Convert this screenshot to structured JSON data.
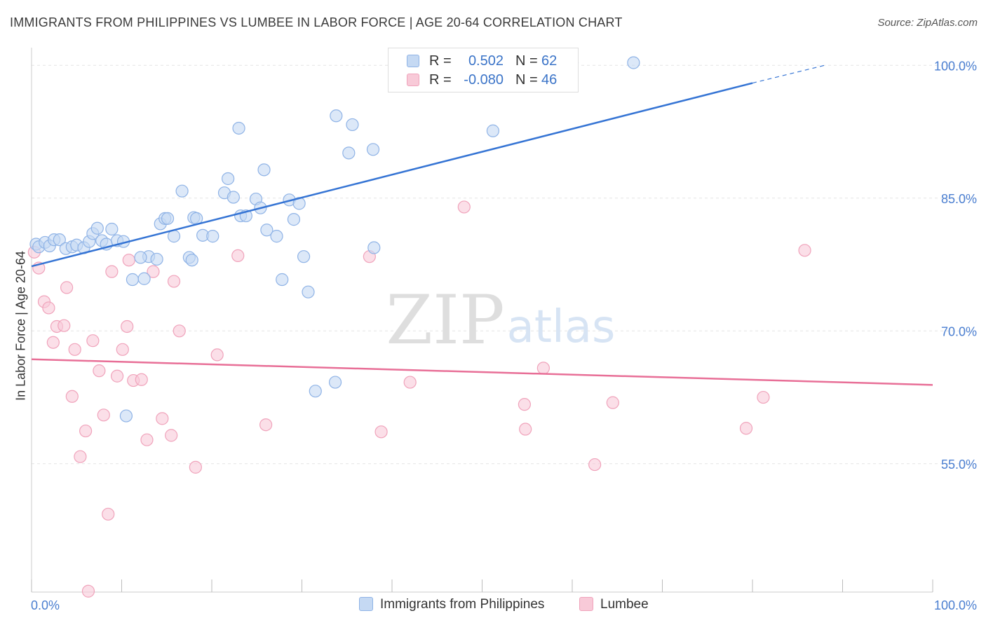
{
  "header": {
    "title": "IMMIGRANTS FROM PHILIPPINES VS LUMBEE IN LABOR FORCE | AGE 20-64 CORRELATION CHART",
    "source": "Source: ZipAtlas.com"
  },
  "watermark": {
    "zip": "ZIP",
    "atlas": "atlas"
  },
  "colors": {
    "blue_fill": "#c5d9f3",
    "blue_stroke": "#8fb3e6",
    "blue_line": "#3574d4",
    "pink_fill": "#f8cad8",
    "pink_stroke": "#f0a3bb",
    "pink_line": "#e86f97",
    "tick_label": "#4a7ed0",
    "grid": "#e3e3e3"
  },
  "stats": [
    {
      "r_label": "R =",
      "r_value": "0.502",
      "n_label": "N =",
      "n_value": "62",
      "swatch": "blue"
    },
    {
      "r_label": "R =",
      "r_value": "-0.080",
      "n_label": "N =",
      "n_value": "46",
      "swatch": "pink"
    }
  ],
  "legend": {
    "series1": "Immigrants from Philippines",
    "series2": "Lumbee"
  },
  "chart_data": {
    "type": "scatter",
    "title": "IMMIGRANTS FROM PHILIPPINES VS LUMBEE IN LABOR FORCE | AGE 20-64 CORRELATION CHART",
    "xlabel": "",
    "ylabel": "In Labor Force | Age 20-64",
    "xlim": [
      0,
      100
    ],
    "ylim": [
      40.5,
      102
    ],
    "x_tick_labels": [
      "0.0%",
      "100.0%"
    ],
    "y_ticks": [
      55,
      70,
      85,
      100
    ],
    "y_tick_labels": [
      "55.0%",
      "70.0%",
      "85.0%",
      "100.0%"
    ],
    "grid": true,
    "legend_position": "bottom",
    "series": [
      {
        "name": "Immigrants from Philippines",
        "color": "#3574d4",
        "trend": {
          "x": [
            0,
            80
          ],
          "y": [
            77.3,
            98.0
          ],
          "dashed_to": [
            88,
            100.0
          ]
        },
        "points": [
          [
            0.5,
            79.8
          ],
          [
            0.8,
            79.5
          ],
          [
            1.5,
            80.0
          ],
          [
            2.0,
            79.6
          ],
          [
            2.5,
            80.3
          ],
          [
            3.1,
            80.3
          ],
          [
            3.8,
            79.3
          ],
          [
            4.5,
            79.5
          ],
          [
            5.0,
            79.7
          ],
          [
            5.8,
            79.4
          ],
          [
            6.4,
            80.1
          ],
          [
            6.8,
            81.0
          ],
          [
            7.3,
            81.6
          ],
          [
            7.8,
            80.2
          ],
          [
            8.3,
            79.8
          ],
          [
            8.9,
            81.5
          ],
          [
            9.5,
            80.2
          ],
          [
            10.2,
            80.1
          ],
          [
            11.2,
            75.8
          ],
          [
            12.5,
            75.9
          ],
          [
            13.0,
            78.4
          ],
          [
            13.9,
            78.1
          ],
          [
            14.3,
            82.1
          ],
          [
            14.8,
            82.7
          ],
          [
            15.1,
            82.7
          ],
          [
            15.8,
            80.7
          ],
          [
            16.7,
            85.8
          ],
          [
            18.0,
            82.8
          ],
          [
            18.3,
            82.7
          ],
          [
            19.0,
            80.8
          ],
          [
            20.1,
            80.7
          ],
          [
            17.5,
            78.3
          ],
          [
            21.4,
            85.6
          ],
          [
            21.8,
            87.2
          ],
          [
            22.4,
            85.1
          ],
          [
            23.2,
            83.0
          ],
          [
            23.8,
            83.0
          ],
          [
            24.9,
            84.9
          ],
          [
            25.4,
            83.9
          ],
          [
            26.1,
            81.4
          ],
          [
            27.2,
            80.7
          ],
          [
            27.8,
            75.8
          ],
          [
            28.6,
            84.8
          ],
          [
            29.1,
            82.6
          ],
          [
            29.7,
            84.4
          ],
          [
            30.2,
            78.4
          ],
          [
            30.7,
            74.4
          ],
          [
            23.0,
            92.9
          ],
          [
            25.8,
            88.2
          ],
          [
            33.8,
            94.3
          ],
          [
            35.2,
            90.1
          ],
          [
            35.6,
            93.3
          ],
          [
            37.9,
            90.5
          ],
          [
            38.0,
            79.4
          ],
          [
            31.5,
            63.2
          ],
          [
            33.7,
            64.2
          ],
          [
            10.5,
            60.4
          ],
          [
            51.2,
            92.6
          ],
          [
            60.0,
            100.3
          ],
          [
            66.8,
            100.3
          ],
          [
            17.8,
            78.0
          ],
          [
            12.1,
            78.3
          ]
        ]
      },
      {
        "name": "Lumbee",
        "color": "#e86f97",
        "trend": {
          "x": [
            0,
            100
          ],
          "y": [
            66.8,
            63.9
          ]
        },
        "points": [
          [
            0.3,
            78.9
          ],
          [
            0.8,
            77.1
          ],
          [
            1.4,
            73.3
          ],
          [
            1.9,
            72.6
          ],
          [
            2.4,
            68.7
          ],
          [
            2.8,
            70.5
          ],
          [
            3.6,
            70.6
          ],
          [
            3.9,
            74.9
          ],
          [
            4.5,
            62.6
          ],
          [
            4.8,
            67.9
          ],
          [
            5.4,
            55.8
          ],
          [
            6.0,
            58.7
          ],
          [
            6.3,
            40.6
          ],
          [
            6.8,
            68.9
          ],
          [
            7.5,
            65.5
          ],
          [
            8.0,
            60.5
          ],
          [
            8.5,
            49.3
          ],
          [
            8.9,
            76.7
          ],
          [
            9.5,
            64.9
          ],
          [
            10.1,
            67.9
          ],
          [
            10.6,
            70.5
          ],
          [
            10.8,
            78.0
          ],
          [
            11.3,
            64.4
          ],
          [
            12.2,
            64.5
          ],
          [
            12.8,
            57.7
          ],
          [
            13.5,
            76.7
          ],
          [
            14.5,
            60.1
          ],
          [
            15.5,
            58.2
          ],
          [
            15.8,
            75.6
          ],
          [
            16.4,
            70.0
          ],
          [
            18.2,
            54.6
          ],
          [
            20.6,
            67.3
          ],
          [
            22.9,
            78.5
          ],
          [
            26.0,
            59.4
          ],
          [
            37.5,
            78.4
          ],
          [
            38.8,
            58.6
          ],
          [
            42.0,
            64.2
          ],
          [
            48.0,
            84.0
          ],
          [
            54.7,
            61.7
          ],
          [
            54.8,
            58.9
          ],
          [
            56.8,
            65.8
          ],
          [
            62.5,
            54.9
          ],
          [
            64.5,
            61.9
          ],
          [
            79.3,
            59.0
          ],
          [
            81.2,
            62.5
          ],
          [
            85.8,
            79.1
          ]
        ]
      }
    ]
  }
}
